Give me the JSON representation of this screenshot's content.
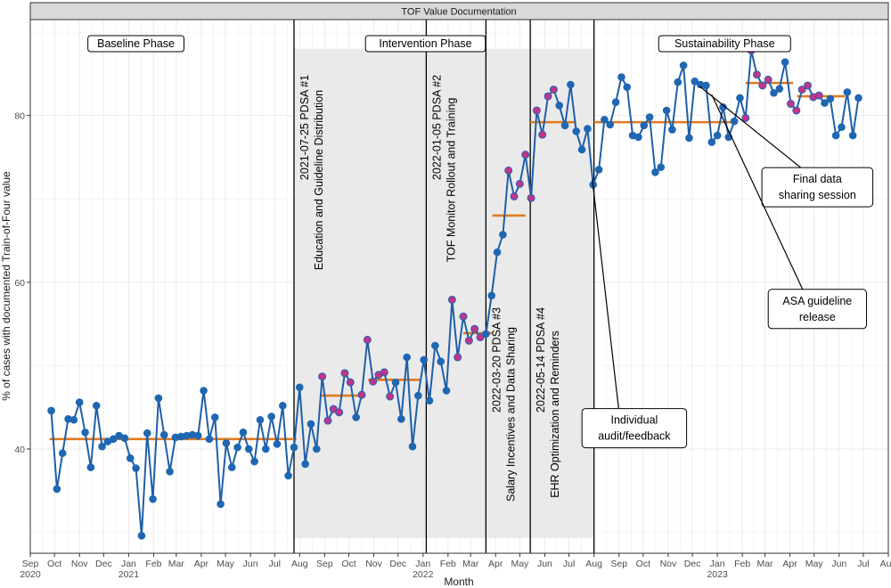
{
  "chart_data": {
    "type": "line",
    "panel_title": "TOF Value Documentation",
    "ylabel": "% of cases with documented Train-of-Four value",
    "xlabel": "Month",
    "ylim": [
      27.5,
      91.5
    ],
    "yticks": [
      40,
      60,
      80
    ],
    "xlim": [
      "2020-09-01",
      "2023-08-01"
    ],
    "grid": true,
    "colors": {
      "line": "#1f5fa8",
      "point": "#1f66b3",
      "special_point": "#c2338a",
      "median": "#e07a1f",
      "shade": "#e8e8e8",
      "strip": "#d9d9d9",
      "grid": "#ebebeb"
    },
    "xticks": [
      {
        "date": "2020-09-01",
        "label": "Sep",
        "year": "2020"
      },
      {
        "date": "2020-10-01",
        "label": "Oct",
        "year": ""
      },
      {
        "date": "2020-11-01",
        "label": "Nov",
        "year": ""
      },
      {
        "date": "2020-12-01",
        "label": "Dec",
        "year": ""
      },
      {
        "date": "2021-01-01",
        "label": "Jan",
        "year": "2021"
      },
      {
        "date": "2021-02-01",
        "label": "Feb",
        "year": ""
      },
      {
        "date": "2021-03-01",
        "label": "Mar",
        "year": ""
      },
      {
        "date": "2021-04-01",
        "label": "Apr",
        "year": ""
      },
      {
        "date": "2021-05-01",
        "label": "May",
        "year": ""
      },
      {
        "date": "2021-06-01",
        "label": "Jun",
        "year": ""
      },
      {
        "date": "2021-07-01",
        "label": "Jul",
        "year": ""
      },
      {
        "date": "2021-08-01",
        "label": "Aug",
        "year": ""
      },
      {
        "date": "2021-09-01",
        "label": "Sep",
        "year": ""
      },
      {
        "date": "2021-10-01",
        "label": "Oct",
        "year": ""
      },
      {
        "date": "2021-11-01",
        "label": "Nov",
        "year": ""
      },
      {
        "date": "2021-12-01",
        "label": "Dec",
        "year": ""
      },
      {
        "date": "2022-01-01",
        "label": "Jan",
        "year": "2022"
      },
      {
        "date": "2022-02-01",
        "label": "Feb",
        "year": ""
      },
      {
        "date": "2022-03-01",
        "label": "Mar",
        "year": ""
      },
      {
        "date": "2022-04-01",
        "label": "Apr",
        "year": ""
      },
      {
        "date": "2022-05-01",
        "label": "May",
        "year": ""
      },
      {
        "date": "2022-06-01",
        "label": "Jun",
        "year": ""
      },
      {
        "date": "2022-07-01",
        "label": "Jul",
        "year": ""
      },
      {
        "date": "2022-08-01",
        "label": "Aug",
        "year": ""
      },
      {
        "date": "2022-09-01",
        "label": "Sep",
        "year": ""
      },
      {
        "date": "2022-10-01",
        "label": "Oct",
        "year": ""
      },
      {
        "date": "2022-11-01",
        "label": "Nov",
        "year": ""
      },
      {
        "date": "2022-12-01",
        "label": "Dec",
        "year": ""
      },
      {
        "date": "2023-01-01",
        "label": "Jan",
        "year": "2023"
      },
      {
        "date": "2023-02-01",
        "label": "Feb",
        "year": ""
      },
      {
        "date": "2023-03-01",
        "label": "Mar",
        "year": ""
      },
      {
        "date": "2023-04-01",
        "label": "Apr",
        "year": ""
      },
      {
        "date": "2023-05-01",
        "label": "May",
        "year": ""
      },
      {
        "date": "2023-06-01",
        "label": "Jun",
        "year": ""
      },
      {
        "date": "2023-07-01",
        "label": "Jul",
        "year": ""
      },
      {
        "date": "2023-08-01",
        "label": "Aug",
        "year": ""
      }
    ],
    "phases": [
      {
        "label": "Baseline Phase",
        "center": "2021-01-10"
      },
      {
        "label": "Intervention Phase",
        "center": "2022-01-04"
      },
      {
        "label": "Sustainability Phase",
        "center": "2023-01-10"
      }
    ],
    "pdsa_cycles": [
      {
        "date": "2021-07-25",
        "text": "2021-07-25 PDSA #1",
        "detail": "Education and Guideline Distribution",
        "position": "top"
      },
      {
        "date": "2022-01-05",
        "text": "2022-01-05 PDSA #2",
        "detail": "TOF Monitor Rollout and Training",
        "position": "top"
      },
      {
        "date": "2022-03-20",
        "text": "2022-03-20 PDSA #3",
        "detail": "Salary Incentives and Data Sharing",
        "position": "bottom"
      },
      {
        "date": "2022-05-14",
        "text": "2022-05-14 PDSA #4",
        "detail": "EHR Optimization and Reminders",
        "position": "bottom"
      }
    ],
    "phase_end": "2022-08-01",
    "shaded_region": {
      "start": "2021-07-25",
      "end": "2022-08-01",
      "ymin": 29.3,
      "ymax": 88.0
    },
    "medians": [
      {
        "start": "2020-09-25",
        "end": "2021-07-28",
        "value": 41.2
      },
      {
        "start": "2021-08-28",
        "end": "2021-10-20",
        "value": 46.4
      },
      {
        "start": "2021-10-25",
        "end": "2021-12-28",
        "value": 48.3
      },
      {
        "start": "2022-02-20",
        "end": "2022-03-28",
        "value": 53.9
      },
      {
        "start": "2022-03-28",
        "end": "2022-05-08",
        "value": 68.0
      },
      {
        "start": "2022-05-14",
        "end": "2022-07-10",
        "value": 79.2
      },
      {
        "start": "2022-08-01",
        "end": "2023-01-20",
        "value": 79.2
      },
      {
        "start": "2023-02-05",
        "end": "2023-04-05",
        "value": 83.9
      },
      {
        "start": "2023-04-10",
        "end": "2023-06-08",
        "value": 82.3
      }
    ],
    "annotations": [
      {
        "lines": [
          "Individual",
          "audit/feedback"
        ],
        "target_date": "2022-07-30",
        "target_value": 72.3,
        "box_date": "2022-09-20",
        "box_value": 42.5
      },
      {
        "lines": [
          "Final data",
          "sharing session"
        ],
        "target_date": "2022-12-10",
        "target_value": 83.5,
        "box_date": "2023-05-05",
        "box_value": 71.4
      },
      {
        "lines": [
          "ASA guideline",
          "release"
        ],
        "target_date": "2022-12-25",
        "target_value": 82.5,
        "box_date": "2023-05-05",
        "box_value": 56.8
      }
    ],
    "series": [
      {
        "values": [
          {
            "x": "2020-09-27",
            "y": 44.6
          },
          {
            "x": "2020-10-04",
            "y": 35.2
          },
          {
            "x": "2020-10-11",
            "y": 39.5
          },
          {
            "x": "2020-10-18",
            "y": 43.6
          },
          {
            "x": "2020-10-25",
            "y": 43.5
          },
          {
            "x": "2020-11-01",
            "y": 45.6
          },
          {
            "x": "2020-11-08",
            "y": 42.0
          },
          {
            "x": "2020-11-15",
            "y": 37.8
          },
          {
            "x": "2020-11-22",
            "y": 45.2
          },
          {
            "x": "2020-11-29",
            "y": 40.3
          },
          {
            "x": "2020-12-06",
            "y": 40.9
          },
          {
            "x": "2020-12-13",
            "y": 41.2
          },
          {
            "x": "2020-12-20",
            "y": 41.6
          },
          {
            "x": "2020-12-27",
            "y": 41.3
          },
          {
            "x": "2021-01-03",
            "y": 38.9
          },
          {
            "x": "2021-01-10",
            "y": 37.7
          },
          {
            "x": "2021-01-17",
            "y": 29.6
          },
          {
            "x": "2021-01-24",
            "y": 41.9
          },
          {
            "x": "2021-01-31",
            "y": 34.0
          },
          {
            "x": "2021-02-07",
            "y": 46.1
          },
          {
            "x": "2021-02-14",
            "y": 41.7
          },
          {
            "x": "2021-02-21",
            "y": 37.3
          },
          {
            "x": "2021-02-28",
            "y": 41.4
          },
          {
            "x": "2021-03-07",
            "y": 41.5
          },
          {
            "x": "2021-03-14",
            "y": 41.6
          },
          {
            "x": "2021-03-21",
            "y": 41.7
          },
          {
            "x": "2021-03-28",
            "y": 41.6
          },
          {
            "x": "2021-04-04",
            "y": 47.0
          },
          {
            "x": "2021-04-11",
            "y": 41.2
          },
          {
            "x": "2021-04-18",
            "y": 43.8
          },
          {
            "x": "2021-04-25",
            "y": 33.4
          },
          {
            "x": "2021-05-02",
            "y": 40.7
          },
          {
            "x": "2021-05-09",
            "y": 37.8
          },
          {
            "x": "2021-05-16",
            "y": 40.2
          },
          {
            "x": "2021-05-23",
            "y": 42.0
          },
          {
            "x": "2021-05-30",
            "y": 40.0
          },
          {
            "x": "2021-06-06",
            "y": 38.5
          },
          {
            "x": "2021-06-13",
            "y": 43.5
          },
          {
            "x": "2021-06-20",
            "y": 40.0
          },
          {
            "x": "2021-06-27",
            "y": 43.9
          },
          {
            "x": "2021-07-04",
            "y": 40.6
          },
          {
            "x": "2021-07-11",
            "y": 45.2
          },
          {
            "x": "2021-07-18",
            "y": 36.8
          },
          {
            "x": "2021-07-25",
            "y": 40.2
          },
          {
            "x": "2021-08-01",
            "y": 47.4
          },
          {
            "x": "2021-08-08",
            "y": 38.2
          },
          {
            "x": "2021-08-15",
            "y": 43.0
          },
          {
            "x": "2021-08-22",
            "y": 40.0
          },
          {
            "x": "2021-08-29",
            "y": 48.7
          },
          {
            "x": "2021-09-05",
            "y": 43.4
          },
          {
            "x": "2021-09-12",
            "y": 44.8
          },
          {
            "x": "2021-09-19",
            "y": 44.4
          },
          {
            "x": "2021-09-26",
            "y": 49.1
          },
          {
            "x": "2021-10-03",
            "y": 48.0
          },
          {
            "x": "2021-10-10",
            "y": 43.8
          },
          {
            "x": "2021-10-17",
            "y": 46.5
          },
          {
            "x": "2021-10-24",
            "y": 53.1
          },
          {
            "x": "2021-10-31",
            "y": 48.1
          },
          {
            "x": "2021-11-07",
            "y": 48.9
          },
          {
            "x": "2021-11-14",
            "y": 49.2
          },
          {
            "x": "2021-11-21",
            "y": 46.3
          },
          {
            "x": "2021-11-28",
            "y": 48.0
          },
          {
            "x": "2021-12-05",
            "y": 43.6
          },
          {
            "x": "2021-12-12",
            "y": 51.0
          },
          {
            "x": "2021-12-19",
            "y": 40.3
          },
          {
            "x": "2021-12-26",
            "y": 46.4
          },
          {
            "x": "2022-01-02",
            "y": 50.7
          },
          {
            "x": "2022-01-09",
            "y": 45.8
          },
          {
            "x": "2022-01-16",
            "y": 52.4
          },
          {
            "x": "2022-01-23",
            "y": 50.5
          },
          {
            "x": "2022-01-30",
            "y": 47.0
          },
          {
            "x": "2022-02-06",
            "y": 57.9
          },
          {
            "x": "2022-02-13",
            "y": 51.0
          },
          {
            "x": "2022-02-20",
            "y": 55.9
          },
          {
            "x": "2022-02-27",
            "y": 53.0
          },
          {
            "x": "2022-03-06",
            "y": 54.4
          },
          {
            "x": "2022-03-13",
            "y": 53.4
          },
          {
            "x": "2022-03-20",
            "y": 53.8
          },
          {
            "x": "2022-03-27",
            "y": 58.4
          },
          {
            "x": "2022-04-03",
            "y": 63.6
          },
          {
            "x": "2022-04-10",
            "y": 65.7
          },
          {
            "x": "2022-04-17",
            "y": 73.4
          },
          {
            "x": "2022-04-24",
            "y": 70.3
          },
          {
            "x": "2022-05-01",
            "y": 71.8
          },
          {
            "x": "2022-05-08",
            "y": 75.3
          },
          {
            "x": "2022-05-15",
            "y": 70.1
          },
          {
            "x": "2022-05-22",
            "y": 80.6
          },
          {
            "x": "2022-05-29",
            "y": 77.7
          },
          {
            "x": "2022-06-05",
            "y": 82.3
          },
          {
            "x": "2022-06-12",
            "y": 83.1
          },
          {
            "x": "2022-06-19",
            "y": 81.2
          },
          {
            "x": "2022-06-26",
            "y": 78.8
          },
          {
            "x": "2022-07-03",
            "y": 83.7
          },
          {
            "x": "2022-07-10",
            "y": 78.1
          },
          {
            "x": "2022-07-17",
            "y": 75.9
          },
          {
            "x": "2022-07-24",
            "y": 78.4
          },
          {
            "x": "2022-07-31",
            "y": 71.7
          },
          {
            "x": "2022-08-07",
            "y": 73.5
          },
          {
            "x": "2022-08-14",
            "y": 79.5
          },
          {
            "x": "2022-08-21",
            "y": 78.9
          },
          {
            "x": "2022-08-28",
            "y": 81.6
          },
          {
            "x": "2022-09-04",
            "y": 84.6
          },
          {
            "x": "2022-09-11",
            "y": 83.4
          },
          {
            "x": "2022-09-18",
            "y": 77.6
          },
          {
            "x": "2022-09-25",
            "y": 77.4
          },
          {
            "x": "2022-10-02",
            "y": 78.8
          },
          {
            "x": "2022-10-09",
            "y": 79.8
          },
          {
            "x": "2022-10-16",
            "y": 73.2
          },
          {
            "x": "2022-10-23",
            "y": 73.8
          },
          {
            "x": "2022-10-30",
            "y": 80.6
          },
          {
            "x": "2022-11-06",
            "y": 78.3
          },
          {
            "x": "2022-11-13",
            "y": 84.0
          },
          {
            "x": "2022-11-20",
            "y": 86.0
          },
          {
            "x": "2022-11-27",
            "y": 77.3
          },
          {
            "x": "2022-12-04",
            "y": 84.1
          },
          {
            "x": "2022-12-11",
            "y": 83.7
          },
          {
            "x": "2022-12-18",
            "y": 83.6
          },
          {
            "x": "2022-12-25",
            "y": 76.8
          },
          {
            "x": "2023-01-01",
            "y": 77.6
          },
          {
            "x": "2023-01-08",
            "y": 81.0
          },
          {
            "x": "2023-01-15",
            "y": 77.4
          },
          {
            "x": "2023-01-22",
            "y": 79.3
          },
          {
            "x": "2023-01-29",
            "y": 82.1
          },
          {
            "x": "2023-02-05",
            "y": 79.7
          },
          {
            "x": "2023-02-12",
            "y": 87.8
          },
          {
            "x": "2023-02-19",
            "y": 84.9
          },
          {
            "x": "2023-02-26",
            "y": 83.6
          },
          {
            "x": "2023-03-05",
            "y": 84.3
          },
          {
            "x": "2023-03-12",
            "y": 82.7
          },
          {
            "x": "2023-03-19",
            "y": 83.2
          },
          {
            "x": "2023-03-26",
            "y": 86.4
          },
          {
            "x": "2023-04-02",
            "y": 81.4
          },
          {
            "x": "2023-04-09",
            "y": 80.6
          },
          {
            "x": "2023-04-16",
            "y": 83.1
          },
          {
            "x": "2023-04-23",
            "y": 83.6
          },
          {
            "x": "2023-04-30",
            "y": 82.2
          },
          {
            "x": "2023-05-07",
            "y": 82.4
          },
          {
            "x": "2023-05-14",
            "y": 81.5
          },
          {
            "x": "2023-05-21",
            "y": 82.0
          },
          {
            "x": "2023-05-28",
            "y": 77.6
          },
          {
            "x": "2023-06-04",
            "y": 78.6
          },
          {
            "x": "2023-06-11",
            "y": 82.8
          },
          {
            "x": "2023-06-18",
            "y": 77.6
          },
          {
            "x": "2023-06-25",
            "y": 82.1
          }
        ],
        "special_points": [
          "2021-08-29",
          "2021-09-05",
          "2021-09-12",
          "2021-09-19",
          "2021-09-26",
          "2021-10-03",
          "2021-10-17",
          "2021-10-24",
          "2021-10-31",
          "2021-11-07",
          "2021-11-14",
          "2021-11-21",
          "2022-02-06",
          "2022-02-13",
          "2022-02-20",
          "2022-02-27",
          "2022-03-06",
          "2022-03-13",
          "2022-04-17",
          "2022-04-24",
          "2022-05-01",
          "2022-05-08",
          "2022-05-15",
          "2022-05-22",
          "2022-05-29",
          "2022-06-05",
          "2022-06-12",
          "2023-02-05",
          "2023-02-12",
          "2023-02-19",
          "2023-02-26",
          "2023-03-05",
          "2023-04-02",
          "2023-04-09",
          "2023-04-16",
          "2023-04-23",
          "2023-04-30",
          "2023-05-07"
        ]
      }
    ]
  }
}
